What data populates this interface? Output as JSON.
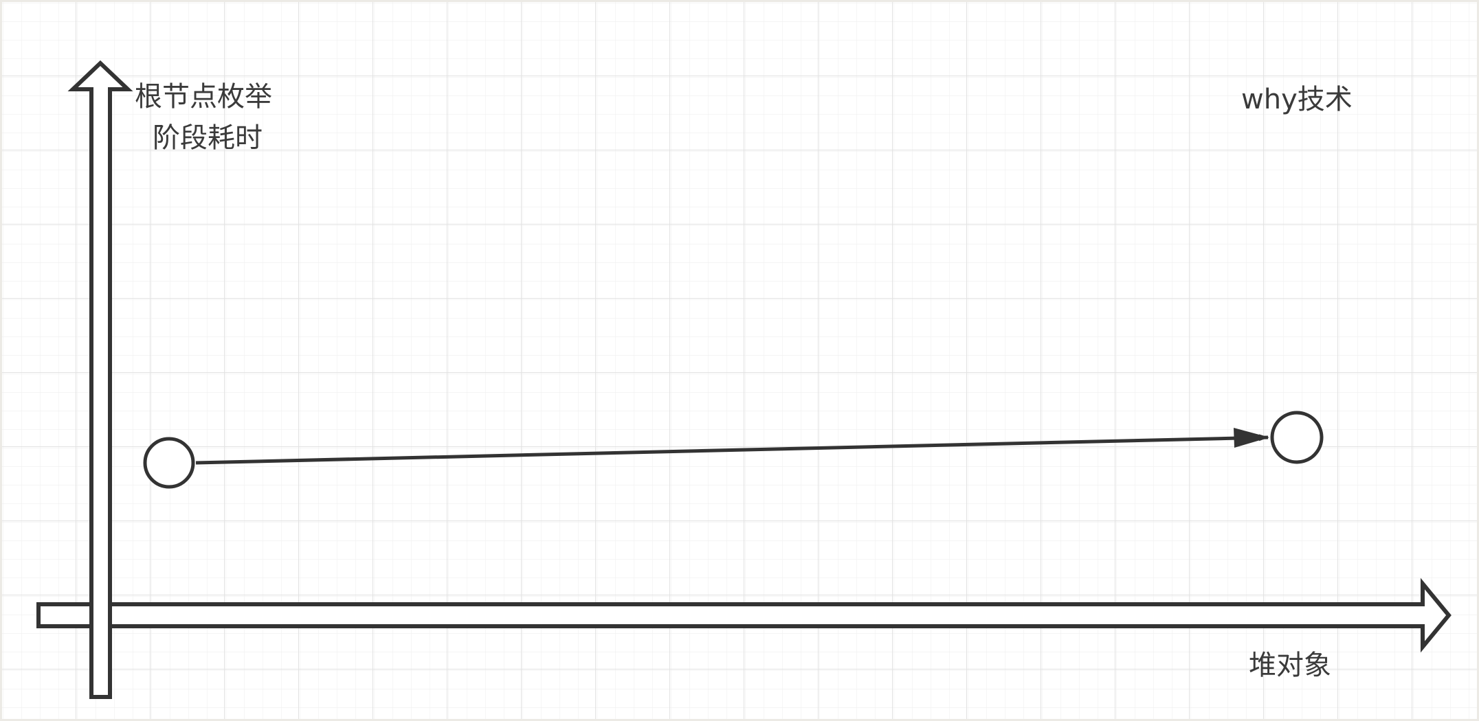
{
  "diagram": {
    "y_axis_label_line1": "根节点枚举",
    "y_axis_label_line2": "阶段耗时",
    "x_axis_label": "堆对象",
    "watermark": "why技术",
    "colors": {
      "background_frame": "#eceae5",
      "canvas": "#ffffff",
      "grid": "#e6e6e6",
      "stroke": "#333333",
      "text": "#3a3a3a"
    },
    "nodes": [
      {
        "name": "start-node"
      },
      {
        "name": "end-node"
      }
    ],
    "edges": [
      {
        "from": "start-node",
        "to": "end-node",
        "arrow": "filled"
      }
    ]
  }
}
